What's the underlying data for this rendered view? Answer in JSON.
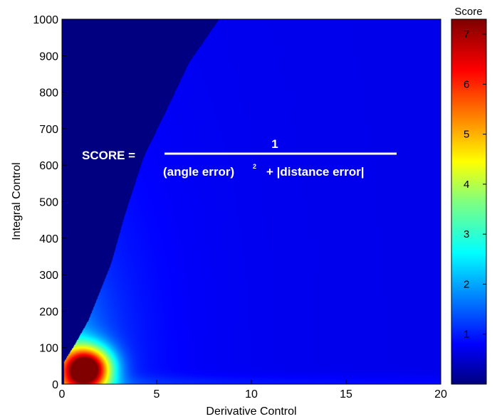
{
  "chart_data": {
    "type": "heatmap",
    "xlabel": "Derivative Control",
    "ylabel": "Integral Control",
    "xlim": [
      0,
      20
    ],
    "ylim": [
      0,
      1000
    ],
    "xticks": [
      "0",
      "5",
      "10",
      "15",
      "20"
    ],
    "yticks": [
      "0",
      "100",
      "200",
      "300",
      "400",
      "500",
      "600",
      "700",
      "800",
      "900",
      "1000"
    ],
    "colorbar": {
      "label": "Score",
      "range": [
        0,
        7.3
      ],
      "ticks": [
        "1",
        "2",
        "3",
        "4",
        "5",
        "6",
        "7"
      ],
      "colormap": "jet"
    },
    "peak": {
      "x": 1.3,
      "y": 40,
      "value": 7.3
    },
    "boundary_points": [
      [
        0.1,
        60
      ],
      [
        0.7,
        110
      ],
      [
        1.4,
        175
      ],
      [
        2.6,
        330
      ],
      [
        3.3,
        460
      ],
      [
        4.3,
        620
      ],
      [
        5.7,
        770
      ],
      [
        6.7,
        880
      ],
      [
        8.3,
        1000
      ]
    ],
    "boundary_region_value": 0,
    "annotation": {
      "lhs": "SCORE =",
      "numerator": "1",
      "denominator_part1": "(angle error)",
      "exponent": "2",
      "denominator_part2": "+  |distance error|"
    }
  },
  "colors": {
    "jet_low": "#00007f",
    "jet_high": "#7f0000",
    "annotation_text": "#ffffff"
  }
}
